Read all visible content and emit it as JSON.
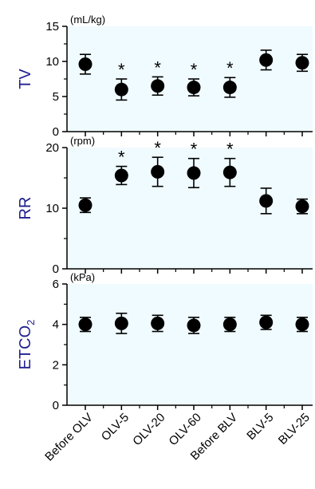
{
  "chart_data": {
    "type": "scatter",
    "categories": [
      "Before OLV",
      "OLV-5",
      "OLV-20",
      "OLV-60",
      "Before BLV",
      "BLV-5",
      "BLV-25"
    ],
    "colors": {
      "panel_bg": "#f0fbff",
      "ylabel": "#1f1f8f",
      "marker": "#000000"
    },
    "significance_marker": "*",
    "panels": [
      {
        "id": "tv",
        "ylabel_main": "TV",
        "ylabel_sub": "",
        "unit": "(mL/kg)",
        "ylim": [
          0,
          15
        ],
        "yticks": [
          "0",
          "5",
          "10",
          "15"
        ],
        "values": [
          9.6,
          6.0,
          6.5,
          6.3,
          6.3,
          10.2,
          9.8
        ],
        "error": [
          1.4,
          1.5,
          1.3,
          1.2,
          1.4,
          1.4,
          1.2
        ],
        "significant": [
          false,
          true,
          true,
          true,
          true,
          false,
          false
        ]
      },
      {
        "id": "rr",
        "ylabel_main": "RR",
        "ylabel_sub": "",
        "unit": "(rpm)",
        "ylim": [
          0,
          20
        ],
        "yticks": [
          "0",
          "10",
          "20"
        ],
        "values": [
          10.5,
          15.4,
          16.0,
          15.8,
          15.9,
          11.2,
          10.3
        ],
        "error": [
          1.2,
          1.5,
          2.4,
          2.4,
          2.3,
          2.1,
          1.2
        ],
        "significant": [
          false,
          true,
          true,
          true,
          true,
          false,
          false
        ]
      },
      {
        "id": "etco2",
        "ylabel_main": "ETCO",
        "ylabel_sub": "2",
        "unit": "(kPa)",
        "ylim": [
          0,
          6
        ],
        "yticks": [
          "0",
          "2",
          "4",
          "6"
        ],
        "values": [
          4.0,
          4.05,
          4.05,
          3.95,
          4.0,
          4.1,
          4.0
        ],
        "error": [
          0.35,
          0.5,
          0.4,
          0.4,
          0.35,
          0.35,
          0.35
        ],
        "significant": [
          false,
          false,
          false,
          false,
          false,
          false,
          false
        ]
      }
    ]
  }
}
